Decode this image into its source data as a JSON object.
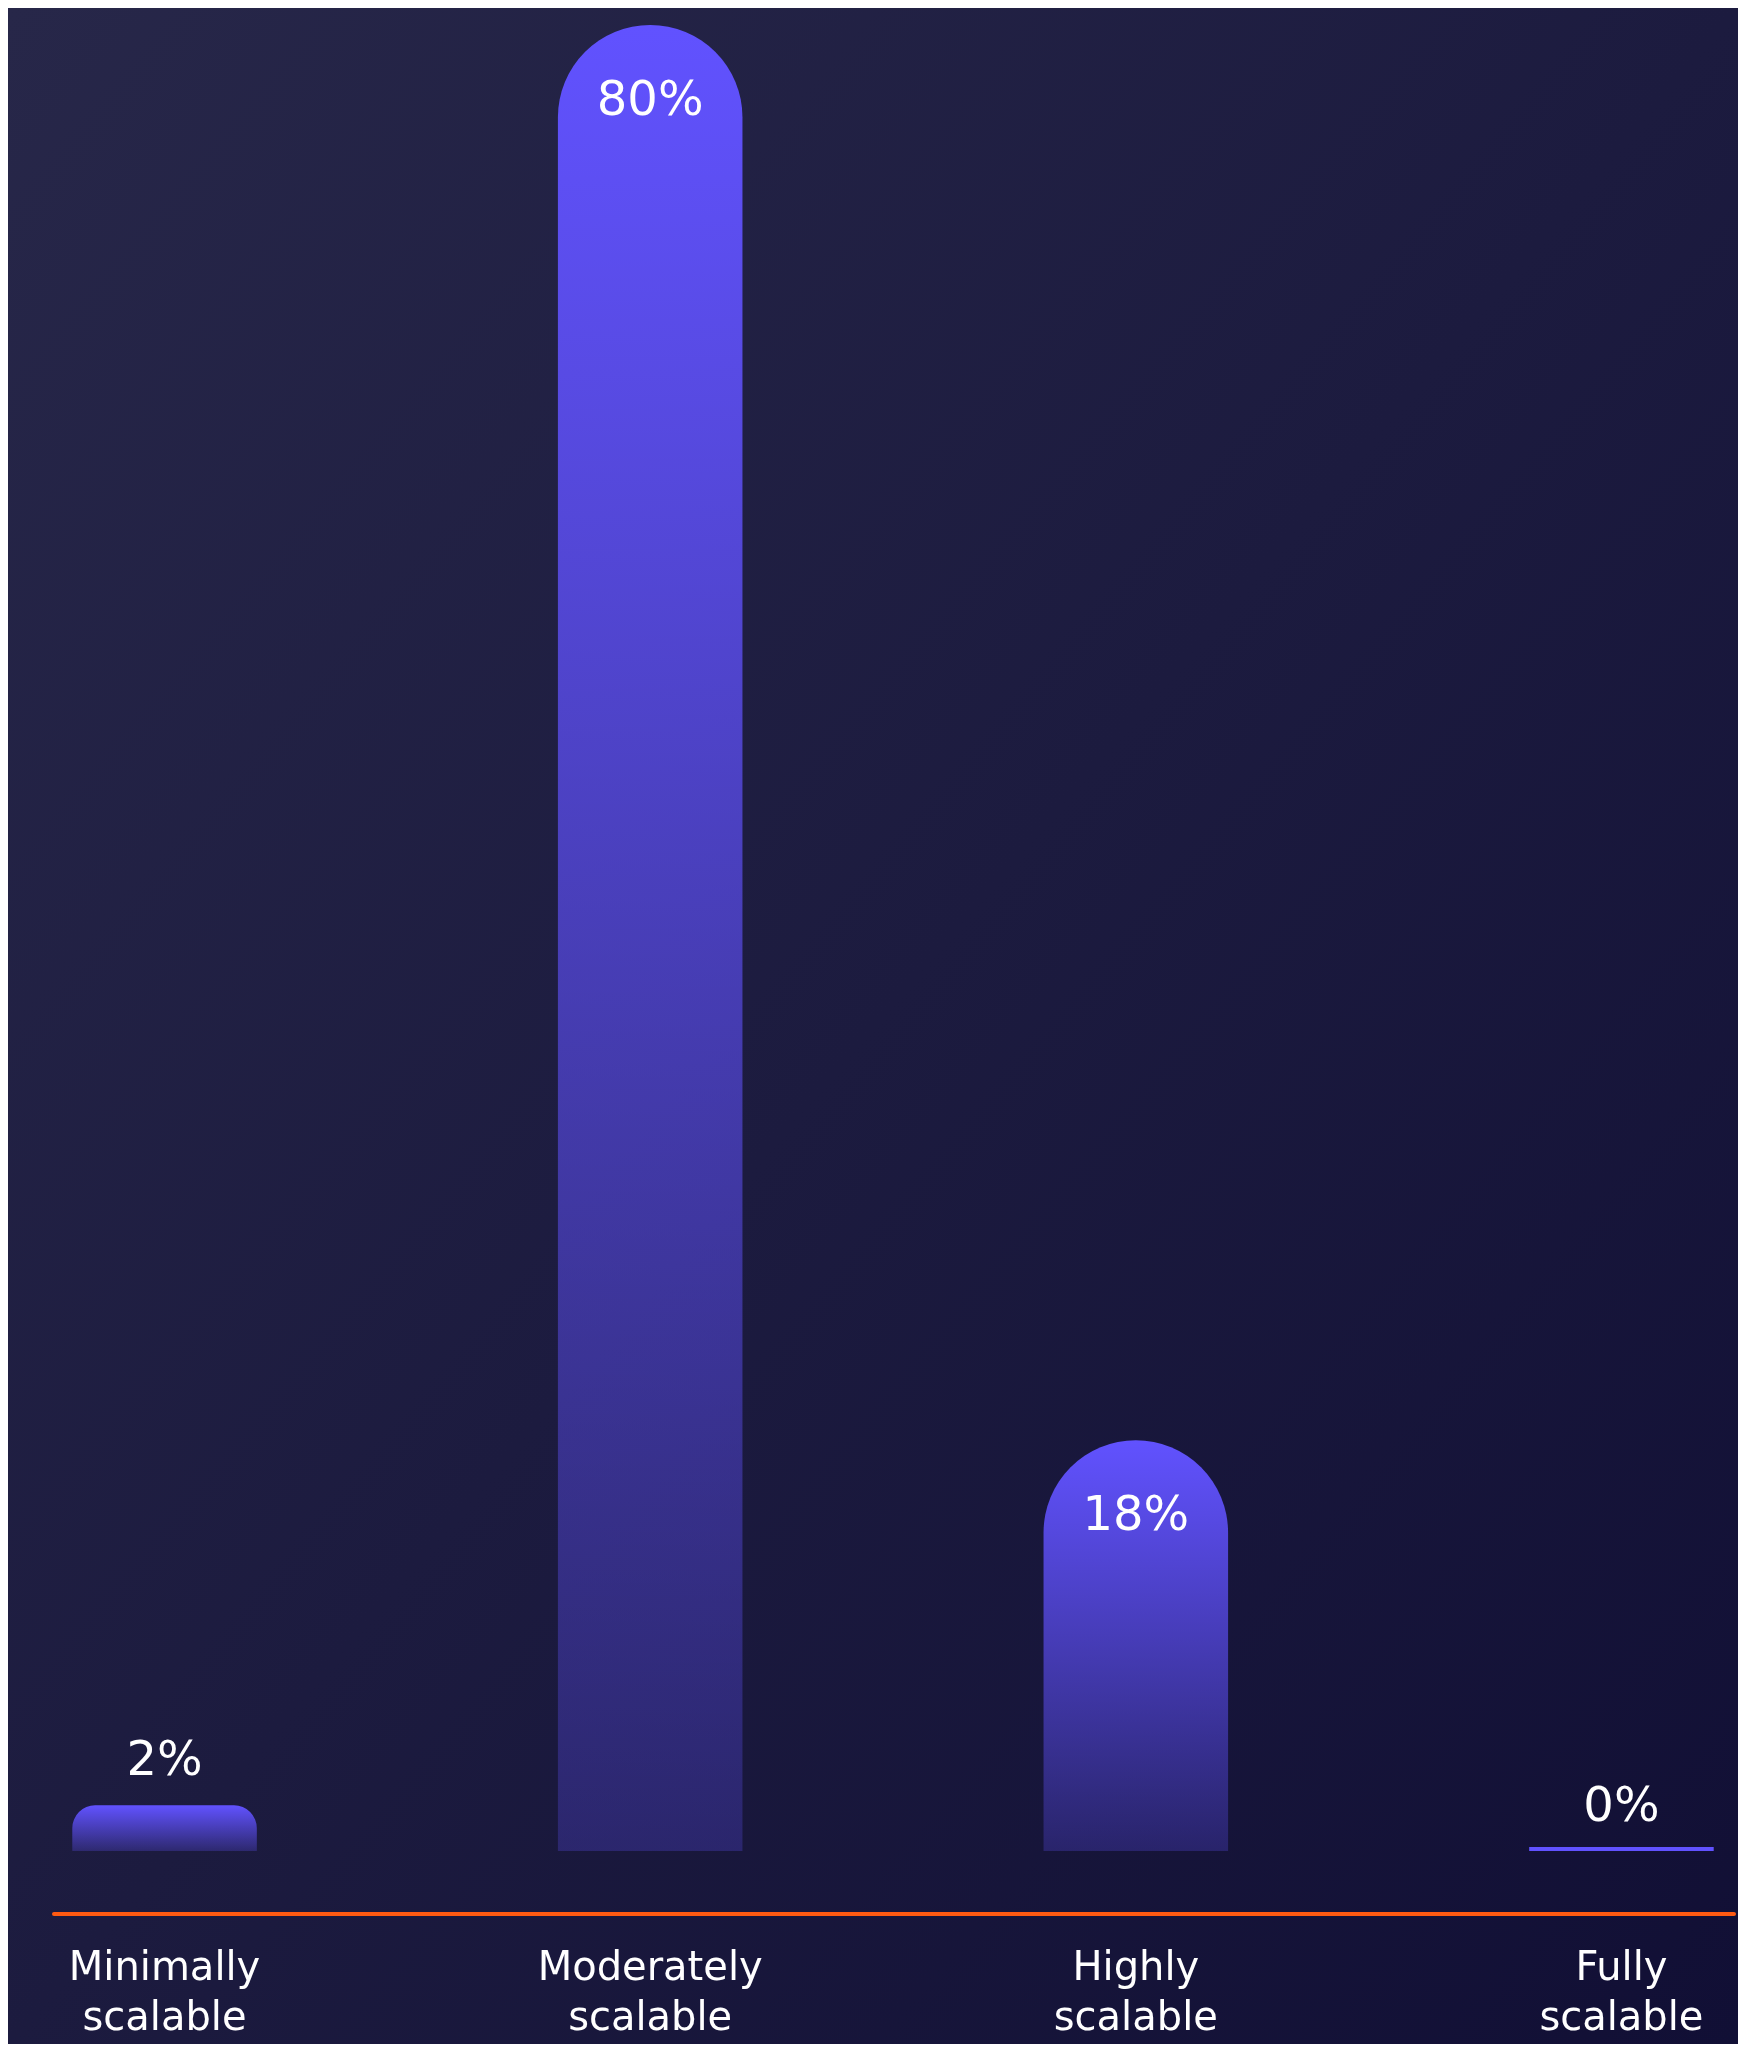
{
  "chart_data": {
    "type": "bar",
    "categories": [
      "Minimally scalable",
      "Moderately scalable",
      "Highly scalable",
      "Fully scalable"
    ],
    "values": [
      2,
      80,
      18,
      0
    ],
    "color": "#6152ff",
    "value_labels": [
      "2%",
      "80%",
      "18%",
      "0%"
    ]
  }
}
